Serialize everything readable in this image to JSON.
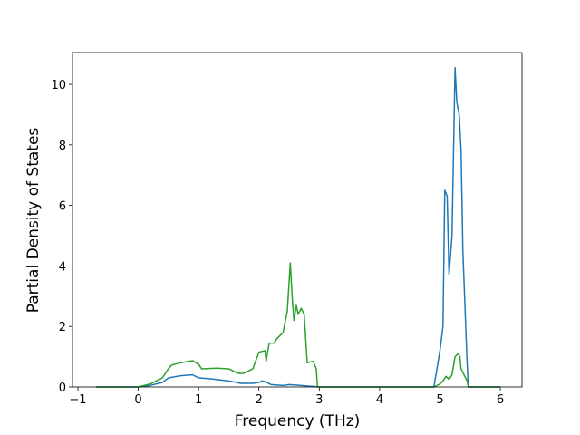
{
  "chart_data": {
    "type": "line",
    "xlabel": "Frequency (THz)",
    "ylabel": "Partial Density of States",
    "xlim": [
      -1.09,
      6.36
    ],
    "ylim": [
      0,
      11.05
    ],
    "xticks": [
      {
        "value": -1,
        "label": "−1"
      },
      0,
      1,
      2,
      3,
      4,
      5,
      6
    ],
    "yticks": [
      0,
      2,
      4,
      6,
      8,
      10
    ],
    "grid": false,
    "series": [
      {
        "color": "#1f77b4",
        "x": [
          -0.7,
          0,
          0.2,
          0.4,
          0.5,
          0.7,
          0.9,
          1.0,
          1.2,
          1.5,
          1.7,
          1.9,
          2.0,
          2.05,
          2.1,
          2.2,
          2.4,
          2.5,
          2.7,
          3.0,
          4.9,
          5.0,
          5.05,
          5.08,
          5.12,
          5.15,
          5.2,
          5.25,
          5.28,
          5.32,
          5.35,
          5.38,
          5.45,
          5.47,
          6.0
        ],
        "values": [
          0,
          0,
          0.05,
          0.15,
          0.3,
          0.37,
          0.4,
          0.3,
          0.27,
          0.2,
          0.12,
          0.12,
          0.15,
          0.2,
          0.18,
          0.08,
          0.05,
          0.08,
          0.05,
          0,
          0,
          1.2,
          2.0,
          6.5,
          6.3,
          3.7,
          5.0,
          10.55,
          9.4,
          9.0,
          7.8,
          4.5,
          0.8,
          0,
          0
        ]
      },
      {
        "color": "#2ca02c",
        "x": [
          -0.7,
          0,
          0.2,
          0.4,
          0.5,
          0.55,
          0.7,
          0.9,
          1.0,
          1.05,
          1.3,
          1.5,
          1.65,
          1.75,
          1.9,
          2.0,
          2.1,
          2.12,
          2.17,
          2.25,
          2.3,
          2.4,
          2.47,
          2.52,
          2.55,
          2.58,
          2.62,
          2.65,
          2.7,
          2.75,
          2.8,
          2.9,
          2.95,
          2.97,
          4.9,
          5.0,
          5.05,
          5.1,
          5.15,
          5.2,
          5.25,
          5.3,
          5.33,
          5.35,
          5.45,
          5.47,
          6.0
        ],
        "values": [
          0,
          0,
          0.1,
          0.3,
          0.6,
          0.72,
          0.8,
          0.87,
          0.75,
          0.6,
          0.62,
          0.6,
          0.45,
          0.45,
          0.6,
          1.15,
          1.2,
          0.85,
          1.45,
          1.45,
          1.6,
          1.8,
          2.5,
          4.1,
          3.0,
          2.2,
          2.7,
          2.4,
          2.6,
          2.4,
          0.8,
          0.85,
          0.6,
          0,
          0,
          0.1,
          0.2,
          0.35,
          0.25,
          0.4,
          1.0,
          1.1,
          1.0,
          0.6,
          0.2,
          0,
          0
        ]
      }
    ]
  }
}
